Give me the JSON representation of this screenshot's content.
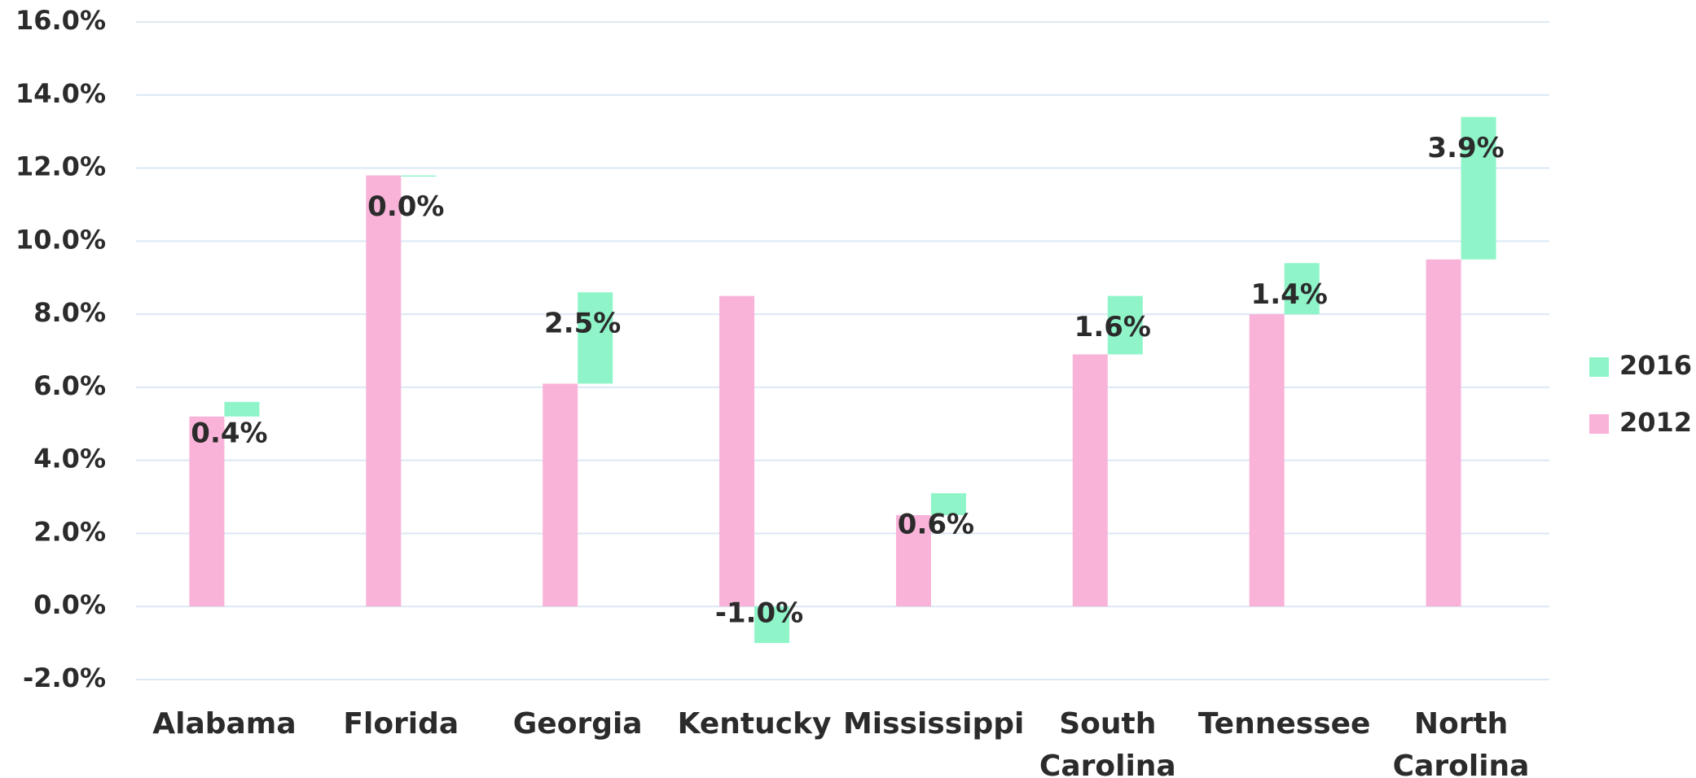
{
  "chart_data": {
    "type": "bar",
    "categories": [
      "Alabama",
      "Florida",
      "Georgia",
      "Kentucky",
      "Mississippi",
      "South Carolina",
      "Tennessee",
      "North Carolina"
    ],
    "series": [
      {
        "name": "2012",
        "color": "#f9b3d9",
        "values": [
          5.2,
          11.8,
          6.1,
          8.5,
          2.5,
          6.9,
          8.0,
          9.5
        ]
      },
      {
        "name": "2016",
        "color": "#8ff5c9",
        "values": [
          0.4,
          0.0,
          2.5,
          -1.0,
          0.6,
          1.6,
          1.4,
          3.9
        ],
        "value_labels": [
          "0.4%",
          "0.0%",
          "2.5%",
          "-1.0%",
          "0.6%",
          "1.6%",
          "1.4%",
          "3.9%"
        ]
      }
    ],
    "ylim": [
      -2,
      16
    ],
    "yticks": [
      {
        "value": -2,
        "label": "-2.0%"
      },
      {
        "value": 0,
        "label": "0.0%"
      },
      {
        "value": 2,
        "label": "2.0%"
      },
      {
        "value": 4,
        "label": "4.0%"
      },
      {
        "value": 6,
        "label": "6.0%"
      },
      {
        "value": 8,
        "label": "8.0%"
      },
      {
        "value": 10,
        "label": "10.0%"
      },
      {
        "value": 12,
        "label": "12.0%"
      },
      {
        "value": 14,
        "label": "14.0%"
      },
      {
        "value": 16,
        "label": "16.0%"
      }
    ],
    "grid": true,
    "legend": "right"
  }
}
